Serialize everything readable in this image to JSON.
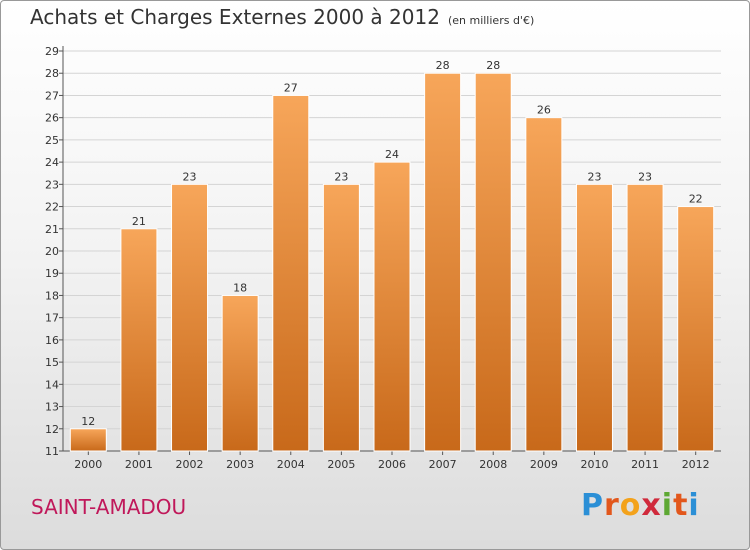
{
  "title": "Achats et Charges Externes 2000 à 2012",
  "subtitle": "(en milliers d'€)",
  "place": "SAINT-AMADOU",
  "logo": {
    "text": "Proxiti",
    "letters": [
      "P",
      "r",
      "o",
      "x",
      "i",
      "t",
      "i"
    ]
  },
  "colors": {
    "bar_top": "#f7a65a",
    "bar_bottom": "#c8691a",
    "place": "#c0185a"
  },
  "chart_data": {
    "type": "bar",
    "categories": [
      "2000",
      "2001",
      "2002",
      "2003",
      "2004",
      "2005",
      "2006",
      "2007",
      "2008",
      "2009",
      "2010",
      "2011",
      "2012"
    ],
    "values": [
      12,
      21,
      23,
      18,
      27,
      23,
      24,
      28,
      28,
      26,
      23,
      23,
      22
    ],
    "ylim": [
      11,
      29
    ],
    "yticks": [
      11,
      12,
      13,
      14,
      15,
      16,
      17,
      18,
      19,
      20,
      21,
      22,
      23,
      24,
      25,
      26,
      27,
      28,
      29
    ],
    "grid": true,
    "xlabel": "",
    "ylabel": ""
  }
}
